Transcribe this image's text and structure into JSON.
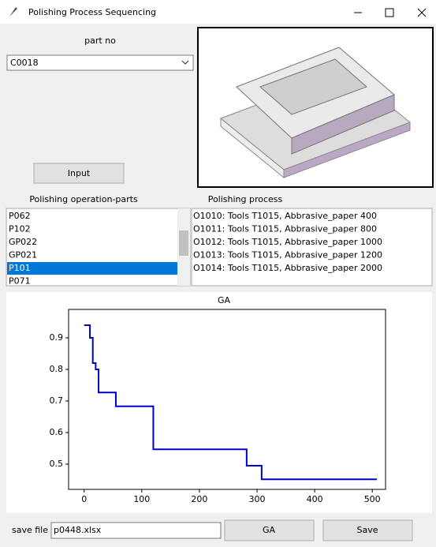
{
  "window": {
    "title": "Polishing Process Sequencing"
  },
  "part_no": {
    "label": "part no",
    "value": "C0018"
  },
  "input_button": "Input",
  "operation_parts": {
    "label": "Polishing operation-parts",
    "items": [
      "P062",
      "P102",
      "GP022",
      "GP021",
      "P101",
      "P071"
    ],
    "selected": 4
  },
  "process": {
    "label": "Polishing process",
    "items": [
      "O1010: Tools T1015, Abbrasive_paper 400",
      "O1011: Tools T1015, Abbrasive_paper 800",
      "O1012: Tools T1015, Abbrasive_paper 1000",
      "O1013: Tools T1015, Abbrasive_paper 1200",
      "O1014: Tools T1015, Abbrasive_paper 2000"
    ]
  },
  "chart_data": {
    "type": "line",
    "title": "GA",
    "x": [
      0,
      10,
      10,
      15,
      15,
      20,
      20,
      25,
      25,
      55,
      55,
      120,
      120,
      282,
      282,
      308,
      308,
      508
    ],
    "values": [
      0.94,
      0.94,
      0.9,
      0.9,
      0.82,
      0.82,
      0.8,
      0.8,
      0.727,
      0.727,
      0.683,
      0.683,
      0.547,
      0.547,
      0.495,
      0.495,
      0.452,
      0.452
    ],
    "color": "#0000cc",
    "xlim": [
      -27,
      523
    ],
    "ylim": [
      0.42,
      0.99
    ],
    "xticks": [
      0,
      100,
      200,
      300,
      400,
      500
    ],
    "yticks": [
      0.5,
      0.6,
      0.7,
      0.8,
      0.9
    ]
  },
  "save": {
    "label": "save file",
    "filename": "p0448.xlsx",
    "ga_button": "GA",
    "save_button": "Save"
  }
}
